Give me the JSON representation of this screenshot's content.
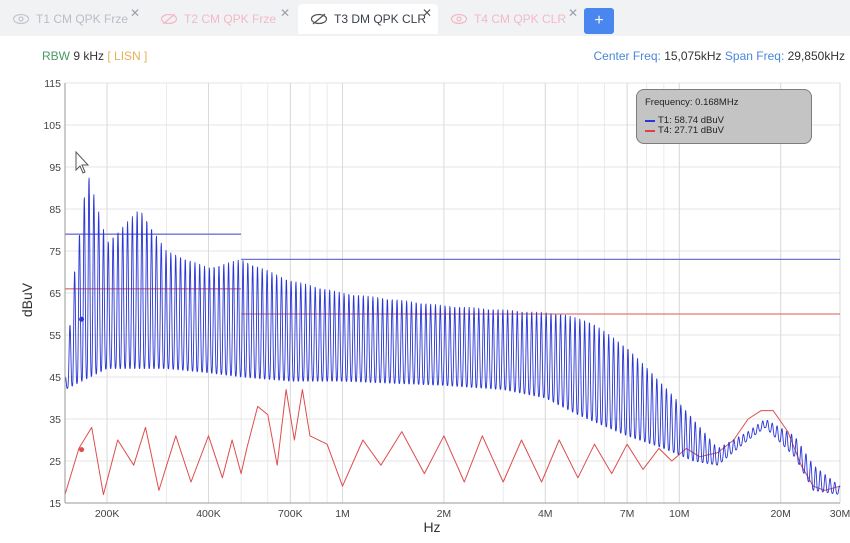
{
  "tabs": [
    {
      "label": "T1 CM QPK Frze",
      "close": "✕",
      "active": false,
      "style": "gray"
    },
    {
      "label": "T2 CM QPK Frze",
      "close": "✕",
      "active": false,
      "style": "pink"
    },
    {
      "label": "T3 DM QPK CLR",
      "close": "✕",
      "active": true,
      "style": "dark"
    },
    {
      "label": "T4 CM QPK CLR",
      "close": "✕",
      "active": false,
      "style": "pink"
    }
  ],
  "add_tab_label": "+",
  "info": {
    "rbw_label": "RBW",
    "rbw_value": "9 kHz",
    "lisn_label": "[ LISN ]",
    "center_label": "Center Freq:",
    "center_value": "15,075kHz",
    "span_label": "Span Freq:",
    "span_value": "29,850kHz"
  },
  "legend": {
    "frequency": "Frequency: 0.168MHz",
    "entries": [
      {
        "text": "T1: 58.74 dBuV",
        "color": "#2a36d6"
      },
      {
        "text": "T4: 27.71 dBuV",
        "color": "#e04040"
      }
    ]
  },
  "colors": {
    "t1": "#2a36d6",
    "t4": "#dd4d4d",
    "limit_blue": "#6e73d6",
    "limit_red": "#e07a7a"
  },
  "chart_data": {
    "type": "line",
    "xscale": "log",
    "xlabel": "Hz",
    "ylabel": "dBuV",
    "xlim": [
      150000,
      30000000
    ],
    "ylim": [
      15,
      115
    ],
    "yticks": [
      15,
      25,
      35,
      45,
      55,
      65,
      75,
      85,
      95,
      105,
      115
    ],
    "xticks": [
      {
        "v": 200000,
        "label": "200K"
      },
      {
        "v": 400000,
        "label": "400K"
      },
      {
        "v": 700000,
        "label": "700K"
      },
      {
        "v": 1000000,
        "label": "1M"
      },
      {
        "v": 2000000,
        "label": "2M"
      },
      {
        "v": 4000000,
        "label": "4M"
      },
      {
        "v": 7000000,
        "label": "7M"
      },
      {
        "v": 10000000,
        "label": "10M"
      },
      {
        "v": 20000000,
        "label": "20M"
      },
      {
        "v": 30000000,
        "label": "30M"
      }
    ],
    "grid": true,
    "limits": [
      {
        "color": "blue",
        "segments": [
          [
            150000,
            500000,
            79
          ],
          [
            500000,
            30000000,
            73
          ]
        ]
      },
      {
        "color": "red",
        "segments": [
          [
            150000,
            500000,
            66
          ],
          [
            500000,
            30000000,
            60
          ]
        ]
      }
    ],
    "markers": [
      {
        "series": "T1",
        "x": 168000,
        "y": 58.74
      },
      {
        "series": "T4",
        "x": 168000,
        "y": 27.71
      }
    ],
    "series": [
      {
        "name": "T1",
        "color": "blue",
        "envelope_top": [
          [
            150000,
            44
          ],
          [
            160000,
            70
          ],
          [
            175000,
            94
          ],
          [
            200000,
            77
          ],
          [
            250000,
            85
          ],
          [
            300000,
            75
          ],
          [
            400000,
            71
          ],
          [
            500000,
            73
          ],
          [
            700000,
            68
          ],
          [
            1000000,
            65
          ],
          [
            2000000,
            62
          ],
          [
            3000000,
            61
          ],
          [
            4500000,
            60
          ],
          [
            5500000,
            58
          ],
          [
            7000000,
            52
          ],
          [
            9000000,
            43
          ],
          [
            11000000,
            35
          ],
          [
            13000000,
            28
          ],
          [
            16000000,
            32
          ],
          [
            18000000,
            35
          ],
          [
            22000000,
            31
          ],
          [
            25000000,
            24
          ],
          [
            30000000,
            19
          ]
        ],
        "envelope_bottom": [
          [
            150000,
            42
          ],
          [
            200000,
            47
          ],
          [
            300000,
            47
          ],
          [
            400000,
            46
          ],
          [
            500000,
            45
          ],
          [
            700000,
            44
          ],
          [
            1000000,
            44
          ],
          [
            2000000,
            43
          ],
          [
            3000000,
            42
          ],
          [
            4000000,
            40
          ],
          [
            5000000,
            36
          ],
          [
            7000000,
            31
          ],
          [
            9000000,
            28
          ],
          [
            11000000,
            25
          ],
          [
            13000000,
            24
          ],
          [
            16000000,
            30
          ],
          [
            18000000,
            33
          ],
          [
            22000000,
            26
          ],
          [
            25000000,
            18
          ],
          [
            30000000,
            17
          ]
        ],
        "cycles_per_decade": 70
      },
      {
        "name": "T4",
        "color": "red",
        "points": [
          [
            150000,
            17
          ],
          [
            165000,
            28
          ],
          [
            180000,
            33
          ],
          [
            195000,
            17
          ],
          [
            215000,
            30
          ],
          [
            240000,
            24
          ],
          [
            260000,
            33
          ],
          [
            285000,
            18
          ],
          [
            320000,
            31
          ],
          [
            355000,
            20
          ],
          [
            400000,
            31
          ],
          [
            440000,
            21
          ],
          [
            470000,
            30
          ],
          [
            500000,
            22
          ],
          [
            520000,
            28
          ],
          [
            560000,
            38
          ],
          [
            600000,
            36
          ],
          [
            640000,
            24
          ],
          [
            680000,
            42
          ],
          [
            720000,
            30
          ],
          [
            760000,
            42
          ],
          [
            800000,
            31
          ],
          [
            900000,
            29
          ],
          [
            1000000,
            19
          ],
          [
            1150000,
            30
          ],
          [
            1300000,
            24
          ],
          [
            1500000,
            32
          ],
          [
            1750000,
            22
          ],
          [
            2000000,
            31
          ],
          [
            2300000,
            20
          ],
          [
            2600000,
            31
          ],
          [
            3000000,
            20
          ],
          [
            3400000,
            30
          ],
          [
            3900000,
            20
          ],
          [
            4400000,
            30
          ],
          [
            5000000,
            21
          ],
          [
            5600000,
            29
          ],
          [
            6300000,
            22
          ],
          [
            7000000,
            29
          ],
          [
            7800000,
            23
          ],
          [
            8700000,
            28
          ],
          [
            9500000,
            25
          ],
          [
            10500000,
            28
          ],
          [
            11500000,
            26
          ],
          [
            13000000,
            27
          ],
          [
            14500000,
            30
          ],
          [
            16000000,
            35
          ],
          [
            17500000,
            37
          ],
          [
            19000000,
            37
          ],
          [
            21000000,
            32
          ],
          [
            23000000,
            24
          ],
          [
            25000000,
            19
          ],
          [
            27000000,
            18
          ],
          [
            30000000,
            19
          ]
        ]
      }
    ]
  }
}
